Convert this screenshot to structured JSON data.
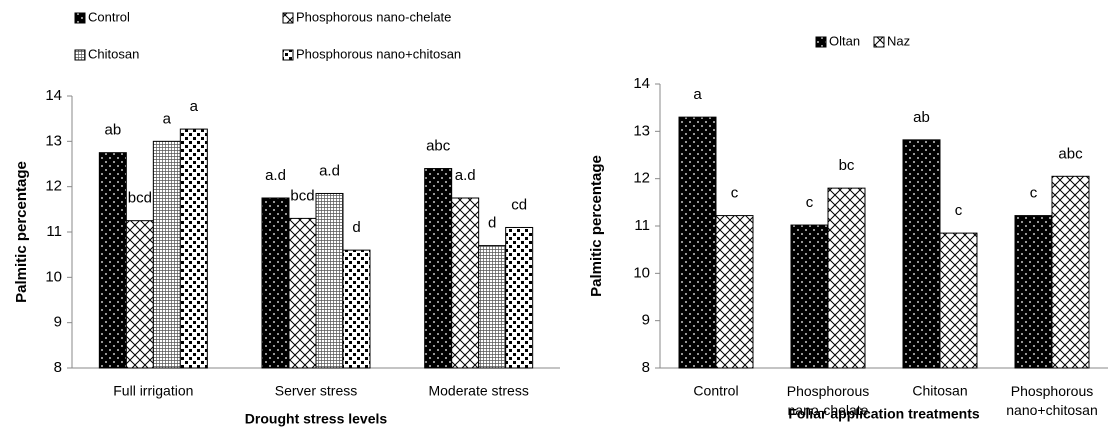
{
  "chart_data": [
    {
      "type": "bar",
      "x_label": "Drought stress levels",
      "y_label": "Palmitic percentage",
      "categories": [
        "Full irrigation",
        "Server stress",
        "Moderate stress"
      ],
      "series": [
        {
          "name": "Control",
          "color": "#000000",
          "pattern": "dark-dots",
          "values": [
            12.75,
            11.75,
            12.4
          ],
          "labels": [
            "ab",
            "a.d",
            "abc"
          ]
        },
        {
          "name": "Phosphorous nano-chelate",
          "color": "#ffffff",
          "pattern": "crosshatch",
          "values": [
            11.25,
            11.3,
            11.75
          ],
          "labels": [
            "bcd",
            "bcd",
            "a.d"
          ]
        },
        {
          "name": "Chitosan",
          "color": "#888888",
          "pattern": "grid",
          "values": [
            13.0,
            11.85,
            10.7
          ],
          "labels": [
            "a",
            "a.d",
            "d"
          ]
        },
        {
          "name": "Phosphorous nano+chitosan",
          "color": "#ffffff",
          "pattern": "light-dots",
          "values": [
            13.27,
            10.6,
            11.1
          ],
          "labels": [
            "a",
            "d",
            "cd"
          ]
        }
      ],
      "ylim": [
        8,
        14
      ],
      "yticks": [
        8,
        9,
        10,
        11,
        12,
        13,
        14
      ],
      "grid": false,
      "legend": "top"
    },
    {
      "type": "bar",
      "x_label": "Foliar application treatments",
      "y_label": "Palmitic percentage",
      "categories": [
        "Control",
        "Phosphorous\nnano-chelate",
        "Chitosan",
        "Phosphorous\nnano+chitosan"
      ],
      "series": [
        {
          "name": "Oltan",
          "color": "#000000",
          "pattern": "dark-dots",
          "values": [
            13.3,
            11.02,
            12.82,
            11.22
          ],
          "labels": [
            "a",
            "c",
            "ab",
            "c"
          ]
        },
        {
          "name": "Naz",
          "color": "#ffffff",
          "pattern": "crosshatch",
          "values": [
            11.22,
            11.8,
            10.85,
            12.05
          ],
          "labels": [
            "c",
            "bc",
            "c",
            "abc"
          ]
        }
      ],
      "ylim": [
        8,
        14
      ],
      "yticks": [
        8,
        9,
        10,
        11,
        12,
        13,
        14
      ],
      "grid": false,
      "legend": "top"
    }
  ]
}
